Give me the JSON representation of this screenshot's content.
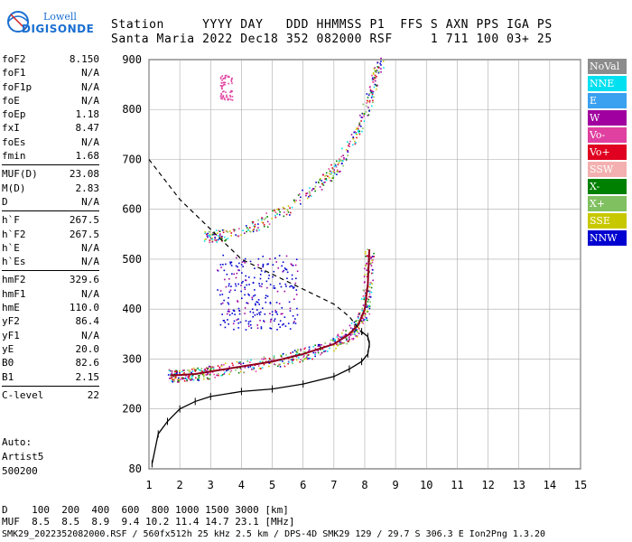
{
  "logo": {
    "line1": "Lowell",
    "line2": "DIGISONDE"
  },
  "header": {
    "row1": "Station     YYYY DAY   DDD HHMMSS P1  FFS S AXN PPS IGA PS",
    "row2": "Santa Maria 2022 Dec18 352 082000 RSF     1 711 100 03+ 25"
  },
  "params": [
    {
      "k": "foF2",
      "v": "8.150"
    },
    {
      "k": "foF1",
      "v": "N/A"
    },
    {
      "k": "foF1p",
      "v": "N/A"
    },
    {
      "k": "foE",
      "v": "N/A"
    },
    {
      "k": "foEp",
      "v": "1.18"
    },
    {
      "k": "fxI",
      "v": "8.47"
    },
    {
      "k": "foEs",
      "v": "N/A"
    },
    {
      "k": "fmin",
      "v": "1.68"
    },
    {
      "k": "MUF(D)",
      "v": "23.08"
    },
    {
      "k": "M(D)",
      "v": "2.83"
    },
    {
      "k": "D",
      "v": "N/A"
    },
    {
      "k": "h`F",
      "v": "267.5"
    },
    {
      "k": "h`F2",
      "v": "267.5"
    },
    {
      "k": "h`E",
      "v": "N/A"
    },
    {
      "k": "h`Es",
      "v": "N/A"
    },
    {
      "k": "hmF2",
      "v": "329.6"
    },
    {
      "k": "hmF1",
      "v": "N/A"
    },
    {
      "k": "hmE",
      "v": "110.0"
    },
    {
      "k": "yF2",
      "v": "86.4"
    },
    {
      "k": "yF1",
      "v": "N/A"
    },
    {
      "k": "yE",
      "v": "20.0"
    },
    {
      "k": "B0",
      "v": "82.6"
    },
    {
      "k": "B1",
      "v": "2.15"
    },
    {
      "k": "C-level",
      "v": "22"
    }
  ],
  "autoscaling": {
    "l1": "Auto:",
    "l2": "Artist5",
    "l3": "500200"
  },
  "legend": [
    {
      "label": "NoVal",
      "color": "#8c8c8c"
    },
    {
      "label": "NNE",
      "color": "#00e0f0"
    },
    {
      "label": "E",
      "color": "#3aa0f0"
    },
    {
      "label": "W",
      "color": "#a000a0"
    },
    {
      "label": "Vo-",
      "color": "#e040a0"
    },
    {
      "label": "Vo+",
      "color": "#e00020"
    },
    {
      "label": "SSW",
      "color": "#f4b0b0"
    },
    {
      "label": "X-",
      "color": "#008000"
    },
    {
      "label": "X+",
      "color": "#80c060"
    },
    {
      "label": "SSE",
      "color": "#c8c800"
    },
    {
      "label": "NNW",
      "color": "#0000d0"
    }
  ],
  "muf_table": {
    "row1": "D    100  200  400  600  800 1000 1500 3000 [km]",
    "row2": "MUF  8.5  8.5  8.9  9.4 10.2 11.4 14.7 23.1 [MHz]"
  },
  "footer": "SMK29_2022352082000.RSF / 560fx512h 25 kHz 2.5 km / DPS-4D SMK29 129 / 29.7 S 306.3 E Ion2Png 1.3.20",
  "chart_data": {
    "type": "scatter",
    "xlim": [
      1,
      15
    ],
    "ylim": [
      80,
      900
    ],
    "x_ticks": [
      1,
      2,
      3,
      4,
      5,
      6,
      7,
      8,
      9,
      10,
      11,
      12,
      13,
      14,
      15
    ],
    "y_ticks": [
      80,
      200,
      300,
      400,
      500,
      600,
      700,
      800,
      900
    ],
    "grid": true,
    "profile_curve": {
      "x": [
        1.1,
        1.3,
        1.6,
        2.0,
        2.5,
        3.0,
        4.0,
        5.0,
        6.0,
        7.0,
        7.5,
        7.9,
        8.1,
        8.15,
        8.1,
        7.9
      ],
      "y": [
        90,
        150,
        175,
        200,
        215,
        225,
        235,
        240,
        250,
        265,
        280,
        295,
        310,
        330,
        345,
        355
      ]
    },
    "trace_F2": {
      "x": [
        1.7,
        2.0,
        2.5,
        3.0,
        4.0,
        5.0,
        6.0,
        7.0,
        7.5,
        7.8,
        8.0,
        8.1,
        8.15
      ],
      "y": [
        268,
        268,
        270,
        275,
        285,
        295,
        310,
        330,
        350,
        370,
        400,
        450,
        520
      ]
    },
    "trace_2F2": {
      "x": [
        2.8,
        3.5,
        4.5,
        5.5,
        6.5,
        7.0,
        7.5,
        8.0,
        8.3,
        8.5
      ],
      "y": [
        545,
        550,
        570,
        600,
        650,
        680,
        730,
        790,
        860,
        900
      ]
    },
    "dashed_model": {
      "x": [
        1.0,
        1.5,
        2.0,
        2.5,
        3.0,
        3.5,
        4.0,
        5.0,
        6.0,
        7.0,
        7.5,
        8.0
      ],
      "y": [
        700,
        660,
        620,
        590,
        560,
        530,
        500,
        470,
        440,
        410,
        385,
        345
      ]
    }
  }
}
